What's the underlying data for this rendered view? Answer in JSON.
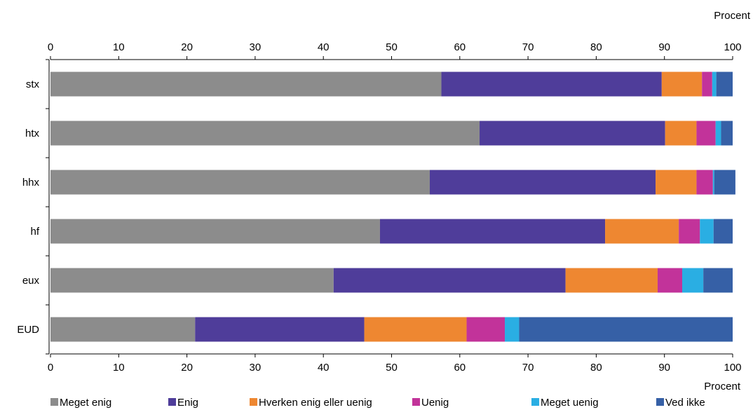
{
  "chart_data": {
    "type": "bar",
    "orientation": "horizontal",
    "stacked": true,
    "unit_label": "Procent",
    "xlim": [
      0,
      100
    ],
    "xticks": [
      0,
      10,
      20,
      30,
      40,
      50,
      60,
      70,
      80,
      90,
      100
    ],
    "grid": false,
    "legend_position": "bottom",
    "categories": [
      "stx",
      "htx",
      "hhx",
      "hf",
      "eux",
      "EUD"
    ],
    "series": [
      {
        "name": "Meget enig",
        "color": "#8c8c8c",
        "values": [
          57.3,
          62.9,
          55.6,
          48.3,
          41.5,
          21.2
        ]
      },
      {
        "name": "Enig",
        "color": "#4f3d9a",
        "values": [
          32.3,
          27.2,
          33.1,
          33.0,
          34.0,
          24.8
        ]
      },
      {
        "name": "Hverken enig eller uenig",
        "color": "#ee8731",
        "values": [
          5.9,
          4.6,
          6.0,
          10.8,
          13.5,
          15.0
        ]
      },
      {
        "name": "Uenig",
        "color": "#c2339a",
        "values": [
          1.5,
          2.8,
          2.4,
          3.1,
          3.6,
          5.6
        ]
      },
      {
        "name": "Meget uenig",
        "color": "#2aaee3",
        "values": [
          0.6,
          0.8,
          0.2,
          2.0,
          3.1,
          2.1
        ]
      },
      {
        "name": "Ved ikke",
        "color": "#3660a6",
        "values": [
          2.4,
          1.7,
          3.1,
          2.8,
          4.3,
          31.3
        ]
      }
    ]
  }
}
